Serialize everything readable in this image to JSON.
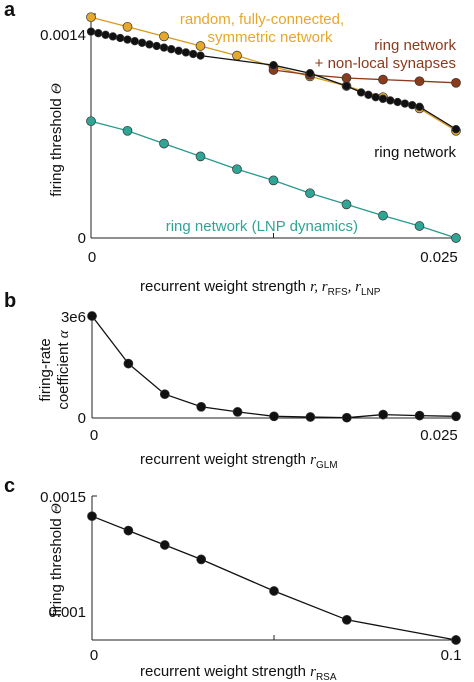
{
  "chart_data": [
    {
      "panel": "a",
      "type": "line",
      "ylabel": {
        "text": "firing threshold ",
        "symbol": "Θ"
      },
      "xlabel": {
        "text": "recurrent weight strength ",
        "symbol": "r",
        "rfs_prefix": ", r",
        "rfs_sub": "RFS",
        "lnp_prefix": ", r",
        "lnp_sub": "LNP"
      },
      "xlim": [
        0,
        0.025
      ],
      "ylim": [
        0,
        0.0014
      ],
      "xtick_labels": [
        "0",
        "0.025"
      ],
      "ytick_labels": [
        "0",
        "0.0014"
      ],
      "colors": {
        "random": "#E6A82B",
        "nonlocal": "#8B3A1C",
        "ring": "#111111",
        "lnp": "#2FA596"
      },
      "series": [
        {
          "name": "random, fully-connected,",
          "name2": "symmetric network",
          "color": "#E6A82B",
          "x": [
            0.0,
            0.0025,
            0.005,
            0.0075,
            0.01,
            0.0125,
            0.015,
            0.0175,
            0.02,
            0.0225,
            0.025
          ],
          "y": [
            0.00138,
            0.00132,
            0.00126,
            0.0012,
            0.00114,
            0.00107,
            0.00101,
            0.00095,
            0.00088,
            0.00081,
            0.00067
          ]
        },
        {
          "name": "ring network",
          "name2": "+ non-local synapses",
          "color": "#8B3A1C",
          "x": [
            0.0125,
            0.015,
            0.0175,
            0.02,
            0.0225,
            0.025
          ],
          "y": [
            0.00105,
            0.00102,
            0.001,
            0.00099,
            0.00098,
            0.00097
          ]
        },
        {
          "name": "ring network",
          "color": "#111111",
          "x": [
            0.0,
            0.0005,
            0.001,
            0.0015,
            0.002,
            0.0025,
            0.003,
            0.0035,
            0.004,
            0.0045,
            0.005,
            0.0055,
            0.006,
            0.0065,
            0.007,
            0.0075,
            0.0125,
            0.015,
            0.0175,
            0.0185,
            0.019,
            0.0195,
            0.02,
            0.0205,
            0.021,
            0.0215,
            0.022,
            0.0225,
            0.025
          ],
          "y": [
            0.00129,
            0.00128,
            0.00127,
            0.00126,
            0.00125,
            0.00124,
            0.00123,
            0.00122,
            0.00121,
            0.0012,
            0.00119,
            0.00118,
            0.00117,
            0.00116,
            0.00115,
            0.00114,
            0.00108,
            0.00103,
            0.00095,
            0.00091,
            0.000895,
            0.00088,
            0.00087,
            0.00086,
            0.00085,
            0.00084,
            0.00083,
            0.00082,
            0.00068
          ]
        },
        {
          "name": "ring network (LNP dynamics)",
          "color": "#2FA596",
          "x": [
            0.0,
            0.0025,
            0.005,
            0.0075,
            0.01,
            0.0125,
            0.015,
            0.0175,
            0.02,
            0.0225,
            0.025
          ],
          "y": [
            0.00073,
            0.00067,
            0.00059,
            0.00051,
            0.00043,
            0.00036,
            0.00028,
            0.00021,
            0.00014,
            7.5e-05,
            0.0
          ]
        }
      ]
    },
    {
      "panel": "b",
      "type": "line",
      "ylabel": {
        "line1": "firing-rate",
        "line2": "coefficient ",
        "symbol": "α"
      },
      "xlabel": {
        "text": "recurrent weight strength ",
        "symbol": "r",
        "sub": "GLM"
      },
      "xlim": [
        0,
        0.025
      ],
      "ylim": [
        0,
        3000000
      ],
      "xtick_labels": [
        "0",
        "0.025"
      ],
      "ytick_labels": [
        "0",
        "3e6"
      ],
      "series": [
        {
          "color": "#111111",
          "x": [
            0.0,
            0.0025,
            0.005,
            0.0075,
            0.01,
            0.0125,
            0.015,
            0.0175,
            0.02,
            0.0225,
            0.025
          ],
          "y": [
            3000000,
            1600000,
            700000,
            330000,
            180000,
            50000,
            30000,
            10000,
            100000,
            70000,
            50000
          ]
        }
      ]
    },
    {
      "panel": "c",
      "type": "line",
      "ylabel": {
        "text": "firing threshold ",
        "symbol": "Θ"
      },
      "xlabel": {
        "text": "recurrent weight strength ",
        "symbol": "r",
        "sub": "RSA"
      },
      "xlim": [
        0,
        0.1
      ],
      "ylim": [
        0.001,
        0.0015
      ],
      "xtick_labels": [
        "0",
        "0.1"
      ],
      "ytick_labels": [
        "0.001",
        "0.0015"
      ],
      "series": [
        {
          "color": "#111111",
          "x": [
            0.0,
            0.01,
            0.02,
            0.03,
            0.05,
            0.07,
            0.1
          ],
          "y": [
            0.00143,
            0.00138,
            0.00133,
            0.00128,
            0.00117,
            0.00107,
            0.001
          ]
        }
      ]
    }
  ]
}
